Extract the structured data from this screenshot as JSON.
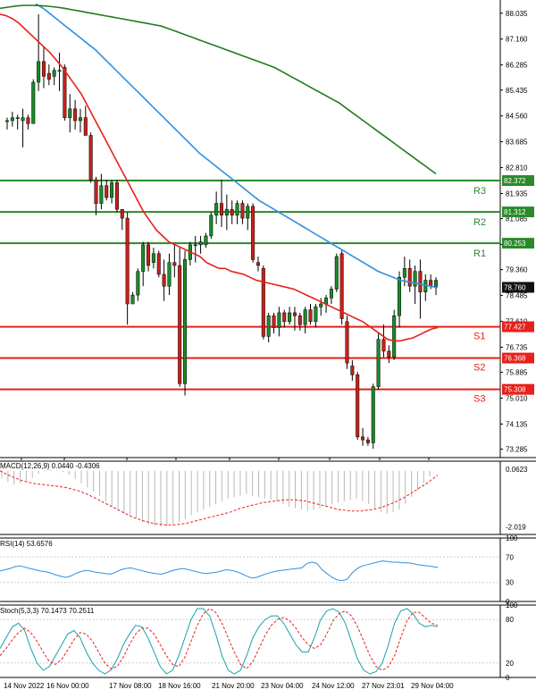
{
  "chart_data": {
    "type": "candlestick",
    "instrument_price": {
      "last_price": "78.760",
      "y_ticks": [
        "88.035",
        "87.160",
        "86.285",
        "85.435",
        "84.560",
        "83.685",
        "82.810",
        "81.935",
        "81.085",
        "80.210",
        "79.360",
        "78.485",
        "77.610",
        "76.735",
        "75.885",
        "75.010",
        "74.135",
        "73.285"
      ],
      "ylim": [
        73.0,
        88.3
      ],
      "x_ticks": [
        "14 Nov 2022",
        "16 Nov 00:00",
        "17 Nov 08:00",
        "18 Nov 16:00",
        "21 Nov 20:00",
        "23 Nov 04:00",
        "24 Nov 12:00",
        "27 Nov 23:01",
        "29 Nov 04:00"
      ],
      "candles": [
        [
          84.4,
          84.5,
          84.1,
          84.4
        ],
        [
          84.4,
          84.7,
          84.2,
          84.5
        ],
        [
          84.5,
          84.6,
          84.1,
          84.5
        ],
        [
          84.4,
          84.8,
          83.5,
          84.5
        ],
        [
          84.5,
          84.6,
          84.1,
          84.3
        ],
        [
          84.3,
          85.8,
          84.3,
          85.7
        ],
        [
          85.7,
          88.0,
          85.4,
          86.4
        ],
        [
          86.4,
          86.9,
          85.5,
          85.9
        ],
        [
          86.0,
          86.3,
          85.6,
          85.8
        ],
        [
          85.9,
          86.2,
          85.6,
          86.1
        ],
        [
          86.1,
          86.7,
          85.4,
          86.1
        ],
        [
          86.2,
          86.3,
          84.4,
          84.5
        ],
        [
          84.5,
          85.3,
          84.0,
          84.8
        ],
        [
          84.8,
          85.1,
          84.1,
          84.4
        ],
        [
          84.4,
          84.8,
          84.0,
          84.5
        ],
        [
          84.5,
          84.9,
          83.9,
          83.9
        ],
        [
          83.9,
          84.0,
          82.3,
          82.4
        ],
        [
          82.4,
          82.5,
          81.2,
          81.6
        ],
        [
          81.6,
          82.6,
          81.4,
          82.2
        ],
        [
          82.2,
          82.4,
          81.7,
          81.8
        ],
        [
          81.8,
          82.4,
          81.6,
          82.3
        ],
        [
          82.3,
          82.4,
          81.3,
          81.4
        ],
        [
          81.4,
          81.4,
          80.7,
          81.1
        ],
        [
          81.1,
          81.3,
          77.5,
          78.2
        ],
        [
          78.2,
          78.6,
          78.2,
          78.5
        ],
        [
          78.5,
          79.4,
          78.3,
          79.3
        ],
        [
          79.3,
          80.3,
          78.8,
          80.2
        ],
        [
          80.2,
          80.3,
          79.3,
          79.5
        ],
        [
          79.6,
          80.1,
          79.4,
          79.9
        ],
        [
          79.9,
          80.0,
          79.1,
          79.2
        ],
        [
          79.2,
          79.7,
          78.3,
          78.8
        ],
        [
          78.8,
          79.9,
          78.5,
          79.6
        ],
        [
          79.6,
          80.2,
          79.1,
          79.5
        ],
        [
          79.5,
          80.1,
          75.4,
          75.5
        ],
        [
          75.5,
          80.0,
          75.1,
          79.7
        ],
        [
          79.7,
          80.3,
          79.5,
          80.2
        ],
        [
          80.2,
          80.5,
          79.6,
          80.2
        ],
        [
          80.2,
          80.5,
          79.9,
          80.3
        ],
        [
          80.2,
          80.6,
          80.1,
          80.5
        ],
        [
          80.5,
          81.3,
          80.4,
          81.2
        ],
        [
          81.2,
          82.0,
          80.9,
          81.6
        ],
        [
          81.6,
          82.4,
          80.8,
          81.2
        ],
        [
          81.2,
          81.9,
          80.7,
          81.4
        ],
        [
          81.4,
          81.7,
          80.9,
          81.2
        ],
        [
          81.2,
          81.7,
          80.9,
          81.6
        ],
        [
          81.6,
          81.7,
          80.9,
          81.1
        ],
        [
          81.1,
          81.6,
          80.7,
          81.5
        ],
        [
          81.5,
          81.6,
          79.6,
          79.7
        ],
        [
          79.6,
          79.8,
          79.3,
          79.5
        ],
        [
          79.4,
          79.5,
          77.0,
          77.1
        ],
        [
          77.1,
          77.9,
          76.9,
          77.8
        ],
        [
          77.8,
          77.9,
          77.2,
          77.4
        ],
        [
          77.4,
          78.1,
          77.1,
          77.9
        ],
        [
          77.9,
          78.0,
          77.4,
          77.6
        ],
        [
          77.6,
          78.1,
          77.5,
          77.9
        ],
        [
          77.9,
          78.1,
          77.3,
          77.8
        ],
        [
          77.8,
          77.9,
          77.3,
          77.5
        ],
        [
          77.5,
          78.1,
          77.2,
          78.0
        ],
        [
          78.0,
          78.2,
          77.5,
          77.6
        ],
        [
          77.6,
          78.2,
          77.4,
          78.1
        ],
        [
          78.1,
          78.4,
          77.8,
          78.2
        ],
        [
          78.2,
          78.5,
          77.9,
          78.4
        ],
        [
          78.4,
          78.8,
          78.2,
          78.7
        ],
        [
          78.7,
          79.9,
          78.6,
          79.8
        ],
        [
          79.9,
          80.0,
          77.5,
          77.7
        ],
        [
          77.6,
          77.8,
          76.0,
          76.2
        ],
        [
          76.1,
          76.3,
          75.6,
          75.8
        ],
        [
          75.8,
          75.9,
          73.6,
          73.7
        ],
        [
          73.7,
          74.0,
          73.4,
          73.6
        ],
        [
          73.6,
          73.7,
          73.4,
          73.5
        ],
        [
          73.5,
          75.5,
          73.3,
          75.4
        ],
        [
          75.4,
          77.2,
          75.3,
          77.0
        ],
        [
          77.0,
          77.5,
          76.4,
          76.6
        ],
        [
          76.6,
          76.8,
          76.2,
          76.4
        ],
        [
          76.4,
          78.0,
          76.3,
          77.8
        ],
        [
          77.8,
          79.3,
          77.4,
          79.1
        ],
        [
          79.1,
          79.8,
          78.8,
          79.4
        ],
        [
          79.4,
          79.7,
          78.6,
          78.8
        ],
        [
          78.8,
          79.5,
          78.2,
          79.3
        ],
        [
          79.3,
          79.7,
          77.7,
          78.6
        ],
        [
          78.6,
          79.2,
          78.3,
          79.0
        ],
        [
          79.0,
          79.2,
          78.7,
          78.8
        ],
        [
          78.8,
          79.1,
          78.5,
          79.0
        ]
      ],
      "ma_red": [
        88.0,
        87.95,
        87.85,
        87.7,
        87.5,
        87.3,
        87.1,
        86.9,
        86.7,
        86.45,
        86.2,
        85.9,
        85.6,
        85.3,
        84.9,
        84.5,
        84.1,
        83.7,
        83.3,
        82.9,
        82.5,
        82.1,
        81.7,
        81.3,
        81.0,
        80.7,
        80.5,
        80.3,
        80.2,
        80.1,
        80.0,
        79.9,
        79.8,
        79.6,
        79.5,
        79.4,
        79.4,
        79.3,
        79.25,
        79.2,
        79.1,
        79.0,
        78.95,
        78.9,
        78.85,
        78.8,
        78.75,
        78.7,
        78.6,
        78.5,
        78.4,
        78.3,
        78.2,
        78.1,
        78.0,
        77.9,
        77.8,
        77.7,
        77.6,
        77.45,
        77.3,
        77.15,
        77.0,
        76.95,
        76.95,
        77.0,
        77.05,
        77.15,
        77.25,
        77.35,
        77.4
      ],
      "ma_blue": [
        88.35,
        88.2,
        88.0,
        87.8,
        87.6,
        87.4,
        87.2,
        87.0,
        86.8,
        86.55,
        86.3,
        86.05,
        85.8,
        85.55,
        85.3,
        85.05,
        84.8,
        84.55,
        84.3,
        84.05,
        83.8,
        83.55,
        83.3,
        83.1,
        82.9,
        82.7,
        82.5,
        82.3,
        82.1,
        81.9,
        81.7,
        81.55,
        81.4,
        81.25,
        81.1,
        80.95,
        80.8,
        80.65,
        80.5,
        80.35,
        80.2,
        80.05,
        79.9,
        79.75,
        79.6,
        79.45,
        79.3,
        79.2,
        79.1,
        79.0,
        78.95,
        78.9,
        78.85,
        78.8,
        78.75
      ],
      "ma_green": [
        88.2,
        88.24,
        88.28,
        88.3,
        88.3,
        88.29,
        88.27,
        88.24,
        88.2,
        88.15,
        88.1,
        88.05,
        88.0,
        87.95,
        87.9,
        87.85,
        87.8,
        87.75,
        87.7,
        87.65,
        87.6,
        87.5,
        87.4,
        87.3,
        87.2,
        87.1,
        87.0,
        86.9,
        86.8,
        86.7,
        86.6,
        86.5,
        86.4,
        86.3,
        86.2,
        86.05,
        85.9,
        85.75,
        85.6,
        85.45,
        85.3,
        85.15,
        85.0,
        84.8,
        84.6,
        84.4,
        84.2,
        84.0,
        83.8,
        83.6,
        83.4,
        83.2,
        83.0,
        82.8,
        82.6
      ],
      "levels": [
        {
          "name": "R3",
          "value": "82.372",
          "color": "#2a8a2a"
        },
        {
          "name": "R2",
          "value": "81.312",
          "color": "#2a8a2a"
        },
        {
          "name": "R1",
          "value": "80.253",
          "color": "#2a8a2a"
        },
        {
          "name": "S1",
          "value": "77.427",
          "color": "#e8201a"
        },
        {
          "name": "S2",
          "value": "76.368",
          "color": "#e8201a"
        },
        {
          "name": "S3",
          "value": "75.308",
          "color": "#e8201a"
        }
      ]
    },
    "macd": {
      "label": "MACD(12,26,9) 0.0440 -0.4306",
      "y_ticks": [
        "0.0623",
        "-2.019"
      ],
      "ylim": [
        -2.3,
        0.35
      ],
      "histogram": [
        -0.25,
        -0.4,
        -0.5,
        -0.45,
        -0.35,
        -0.25,
        -0.1,
        0.02,
        0.05,
        0.02,
        -0.05,
        -0.15,
        -0.3,
        -0.45,
        -0.6,
        -0.75,
        -0.9,
        -1.1,
        -1.3,
        -1.45,
        -1.55,
        -1.6,
        -1.7,
        -1.85,
        -1.95,
        -2.0,
        -2.02,
        -2.0,
        -1.95,
        -1.85,
        -1.75,
        -1.6,
        -1.5,
        -1.4,
        -1.3,
        -1.2,
        -1.1,
        -1.0,
        -0.95,
        -0.9,
        -0.85,
        -0.9,
        -0.95,
        -1.0,
        -1.05,
        -1.1,
        -1.2,
        -1.3,
        -1.35,
        -1.4,
        -1.45,
        -1.4,
        -1.35,
        -1.3,
        -1.2,
        -1.15,
        -1.1,
        -1.05,
        -1.0,
        -1.1,
        -1.2,
        -1.4,
        -1.5,
        -1.55,
        -1.5,
        -1.4,
        -1.2,
        -0.95,
        -0.7,
        -0.45,
        -0.2,
        0.0
      ],
      "signal": [
        0.0,
        -0.2,
        -0.35,
        -0.45,
        -0.5,
        -0.55,
        -0.6,
        -0.7,
        -0.85,
        -1.05,
        -1.25,
        -1.45,
        -1.65,
        -1.8,
        -1.9,
        -1.95,
        -1.95,
        -1.9,
        -1.8,
        -1.7,
        -1.6,
        -1.5,
        -1.35,
        -1.25,
        -1.15,
        -1.1,
        -1.05,
        -1.05,
        -1.1,
        -1.2,
        -1.3,
        -1.4,
        -1.45,
        -1.45,
        -1.4,
        -1.3,
        -1.15,
        -0.95,
        -0.7,
        -0.45,
        -0.15
      ]
    },
    "rsi": {
      "label": "RSI(14) 53.6576",
      "y_ticks": [
        "100",
        "70",
        "30",
        "0"
      ],
      "ylim": [
        0,
        100
      ],
      "values": [
        48,
        50,
        52,
        55,
        56,
        54,
        52,
        50,
        48,
        47,
        45,
        42,
        40,
        38,
        40,
        44,
        47,
        49,
        48,
        46,
        45,
        44,
        43,
        46,
        50,
        52,
        53,
        51,
        49,
        47,
        45,
        44,
        43,
        45,
        48,
        50,
        52,
        51,
        49,
        47,
        45,
        44,
        45,
        46,
        48,
        50,
        49,
        47,
        44,
        40,
        37,
        38,
        41,
        44,
        46,
        48,
        49,
        50,
        51,
        52,
        53,
        60,
        62,
        60,
        50,
        44,
        38,
        34,
        33,
        35,
        45,
        52,
        56,
        58,
        60,
        62,
        64,
        63,
        62,
        62,
        61,
        61,
        60,
        58,
        57,
        56,
        55,
        54
      ]
    },
    "stoch": {
      "label": "Stoch(5,3,3) 70.1473 70.2511",
      "y_ticks": [
        "100",
        "80",
        "20",
        "0"
      ],
      "ylim": [
        0,
        100
      ],
      "k": [
        40,
        55,
        70,
        75,
        65,
        40,
        20,
        10,
        15,
        30,
        45,
        60,
        65,
        55,
        35,
        20,
        10,
        5,
        10,
        25,
        45,
        60,
        72,
        70,
        55,
        35,
        15,
        5,
        10,
        30,
        55,
        80,
        95,
        95,
        85,
        60,
        30,
        10,
        5,
        10,
        30,
        55,
        70,
        80,
        85,
        85,
        75,
        60,
        45,
        35,
        35,
        55,
        80,
        92,
        95,
        90,
        75,
        50,
        25,
        10,
        5,
        8,
        20,
        45,
        75,
        92,
        95,
        88,
        75,
        70,
        72,
        70
      ],
      "d": [
        30,
        40,
        52,
        62,
        68,
        62,
        50,
        35,
        22,
        18,
        25,
        38,
        52,
        62,
        60,
        50,
        35,
        20,
        12,
        15,
        28,
        45,
        60,
        68,
        68,
        60,
        45,
        30,
        18,
        15,
        28,
        50,
        72,
        88,
        95,
        90,
        75,
        55,
        35,
        18,
        12,
        22,
        40,
        58,
        72,
        80,
        83,
        78,
        68,
        55,
        45,
        40,
        45,
        60,
        78,
        88,
        92,
        85,
        70,
        50,
        30,
        15,
        10,
        15,
        30,
        55,
        78,
        90,
        90,
        82,
        75,
        72
      ]
    }
  }
}
